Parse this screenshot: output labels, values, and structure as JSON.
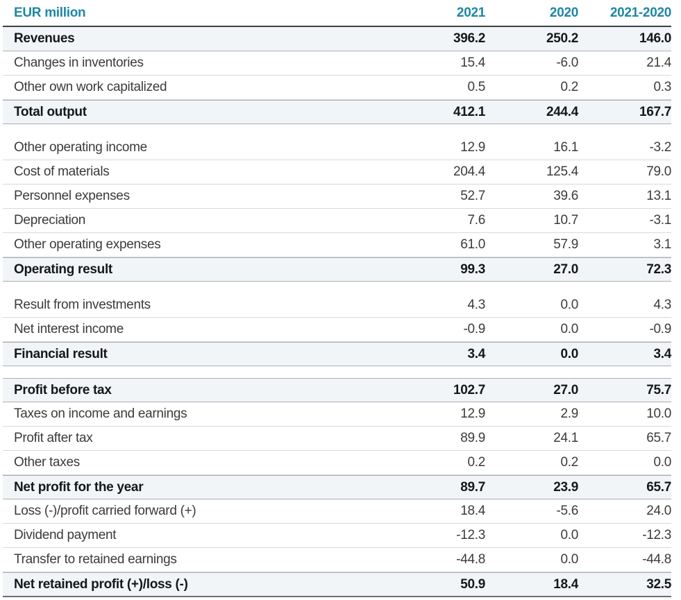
{
  "page": {
    "unit_label": "EUR million"
  },
  "colors": {
    "accent_teal": "#1e87a5",
    "emphasis_row_bg": "#f1f5f8"
  },
  "table": {
    "columns": [
      "2021",
      "2020",
      "2021-2020"
    ],
    "rows": [
      {
        "label": "Revenues",
        "values": [
          "396.2",
          "250.2",
          "146.0"
        ],
        "emphasis": true
      },
      {
        "label": "Changes in inventories",
        "values": [
          "15.4",
          "-6.0",
          "21.4"
        ],
        "emphasis": false
      },
      {
        "label": "Other own work capitalized",
        "values": [
          "0.5",
          "0.2",
          "0.3"
        ],
        "emphasis": false
      },
      {
        "label": "Total output",
        "values": [
          "412.1",
          "244.4",
          "167.7"
        ],
        "emphasis": true
      },
      {
        "spacer": true
      },
      {
        "label": "Other operating income",
        "values": [
          "12.9",
          "16.1",
          "-3.2"
        ],
        "emphasis": false
      },
      {
        "label": "Cost of materials",
        "values": [
          "204.4",
          "125.4",
          "79.0"
        ],
        "emphasis": false
      },
      {
        "label": "Personnel expenses",
        "values": [
          "52.7",
          "39.6",
          "13.1"
        ],
        "emphasis": false
      },
      {
        "label": "Depreciation",
        "values": [
          "7.6",
          "10.7",
          "-3.1"
        ],
        "emphasis": false
      },
      {
        "label": "Other operating expenses",
        "values": [
          "61.0",
          "57.9",
          "3.1"
        ],
        "emphasis": false
      },
      {
        "label": "Operating result",
        "values": [
          "99.3",
          "27.0",
          "72.3"
        ],
        "emphasis": true
      },
      {
        "spacer": true
      },
      {
        "label": "Result from investments",
        "values": [
          "4.3",
          "0.0",
          "4.3"
        ],
        "emphasis": false
      },
      {
        "label": "Net interest income",
        "values": [
          "-0.9",
          "0.0",
          "-0.9"
        ],
        "emphasis": false
      },
      {
        "label": "Financial result",
        "values": [
          "3.4",
          "0.0",
          "3.4"
        ],
        "emphasis": true
      },
      {
        "spacer": true
      },
      {
        "label": "Profit before tax",
        "values": [
          "102.7",
          "27.0",
          "75.7"
        ],
        "emphasis": true
      },
      {
        "label": "Taxes on income and earnings",
        "values": [
          "12.9",
          "2.9",
          "10.0"
        ],
        "emphasis": false
      },
      {
        "label": "Profit after tax",
        "values": [
          "89.9",
          "24.1",
          "65.7"
        ],
        "emphasis": false
      },
      {
        "label": "Other taxes",
        "values": [
          "0.2",
          "0.2",
          "0.0"
        ],
        "emphasis": false
      },
      {
        "label": "Net profit for the year",
        "values": [
          "89.7",
          "23.9",
          "65.7"
        ],
        "emphasis": true
      },
      {
        "label": "Loss (-)/profit carried forward (+)",
        "values": [
          "18.4",
          "-5.6",
          "24.0"
        ],
        "emphasis": false
      },
      {
        "label": "Dividend payment",
        "values": [
          "-12.3",
          "0.0",
          "-12.3"
        ],
        "emphasis": false
      },
      {
        "label": "Transfer to retained earnings",
        "values": [
          "-44.8",
          "0.0",
          "-44.8"
        ],
        "emphasis": false
      },
      {
        "label": "Net retained profit (+)/loss (-)",
        "values": [
          "50.9",
          "18.4",
          "32.5"
        ],
        "emphasis": true
      }
    ]
  }
}
